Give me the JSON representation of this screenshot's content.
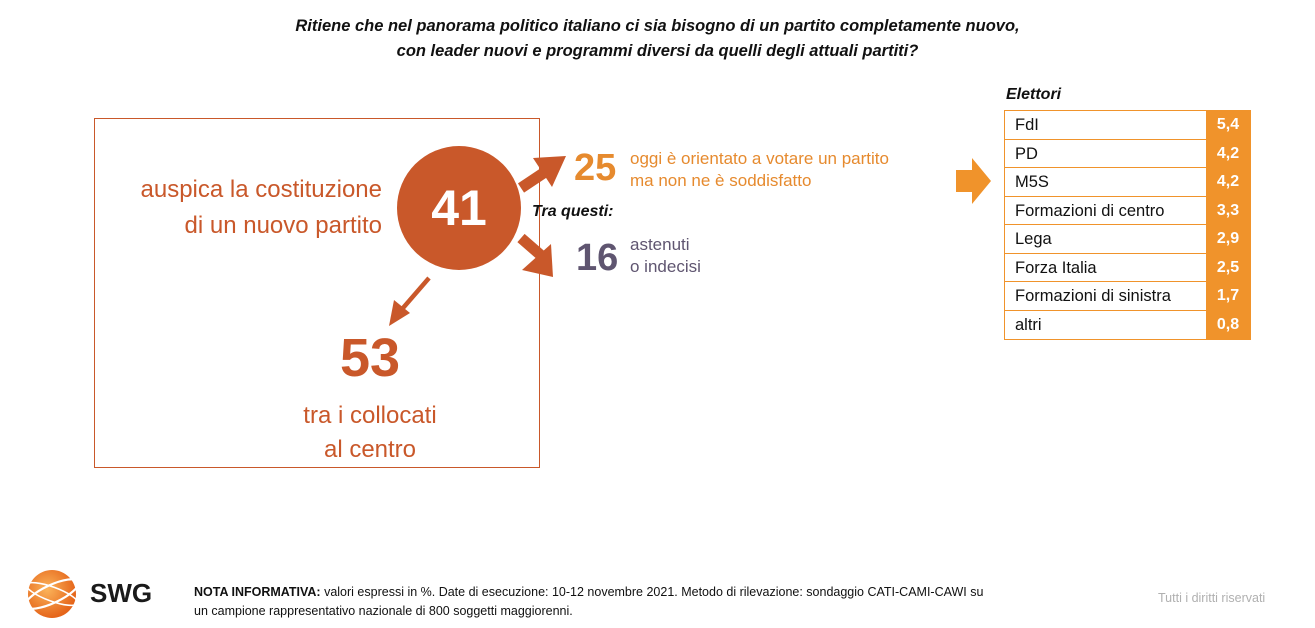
{
  "title": {
    "line1": "Ritiene che nel panorama politico italiano ci sia bisogno di un partito completamente nuovo,",
    "line2": "con leader nuovi e programmi diversi da quelli degli attuali partiti?"
  },
  "main": {
    "label_line1": "auspica la costituzione",
    "label_line2": "di un nuovo partito",
    "value": "41"
  },
  "breakdown": {
    "oriented": {
      "value": "25",
      "line1": "oggi è orientato a votare un partito",
      "line2": "ma non ne è soddisfatto"
    },
    "among_label": "Tra questi:",
    "abstain": {
      "value": "16",
      "line1": "astenuti",
      "line2": "o indecisi"
    },
    "center": {
      "value": "53",
      "line1": "tra i collocati",
      "line2": "al centro"
    }
  },
  "voters": {
    "title": "Elettori",
    "rows": [
      {
        "name": "FdI",
        "value": "5,4"
      },
      {
        "name": "PD",
        "value": "4,2"
      },
      {
        "name": "M5S",
        "value": "4,2"
      },
      {
        "name": "Formazioni di centro",
        "value": "3,3"
      },
      {
        "name": "Lega",
        "value": "2,9"
      },
      {
        "name": "Forza Italia",
        "value": "2,5"
      },
      {
        "name": "Formazioni di sinistra",
        "value": "1,7"
      },
      {
        "name": "altri",
        "value": "0,8"
      }
    ]
  },
  "chart_data": {
    "type": "table",
    "title": "Ritiene che nel panorama politico italiano ci sia bisogno di un partito completamente nuovo, con leader nuovi e programmi diversi da quelli degli attuali partiti?",
    "headline": {
      "value": 41,
      "label": "auspica la costituzione di un nuovo partito"
    },
    "sub_values": [
      {
        "label": "oggi è orientato a votare un partito ma non ne è soddisfatto",
        "value": 25
      },
      {
        "label": "astenuti o indecisi",
        "value": 16
      },
      {
        "label": "tra i collocati al centro",
        "value": 53
      }
    ],
    "table_title": "Elettori",
    "categories": [
      "FdI",
      "PD",
      "M5S",
      "Formazioni di centro",
      "Lega",
      "Forza Italia",
      "Formazioni di sinistra",
      "altri"
    ],
    "values": [
      5.4,
      4.2,
      4.2,
      3.3,
      2.9,
      2.5,
      1.7,
      0.8
    ]
  },
  "footer": {
    "logo_text": "SWG",
    "note_bold": "NOTA INFORMATIVA:",
    "note_line1": " valori espressi in %. Date di esecuzione: 10-12 novembre 2021. Metodo di rilevazione: sondaggio CATI-CAMI-CAWI su",
    "note_line2": "un campione rappresentativo nazionale di 800 soggetti maggiorenni.",
    "rights": "Tutti i diritti riservati"
  },
  "colors": {
    "rust": "#c9582a",
    "orange": "#f0932b",
    "light_orange": "#e68a2e",
    "slate": "#5f5570"
  },
  "icons": [
    "swg-logo-icon",
    "arrow-right-icon",
    "arrow-down-left-icon"
  ]
}
